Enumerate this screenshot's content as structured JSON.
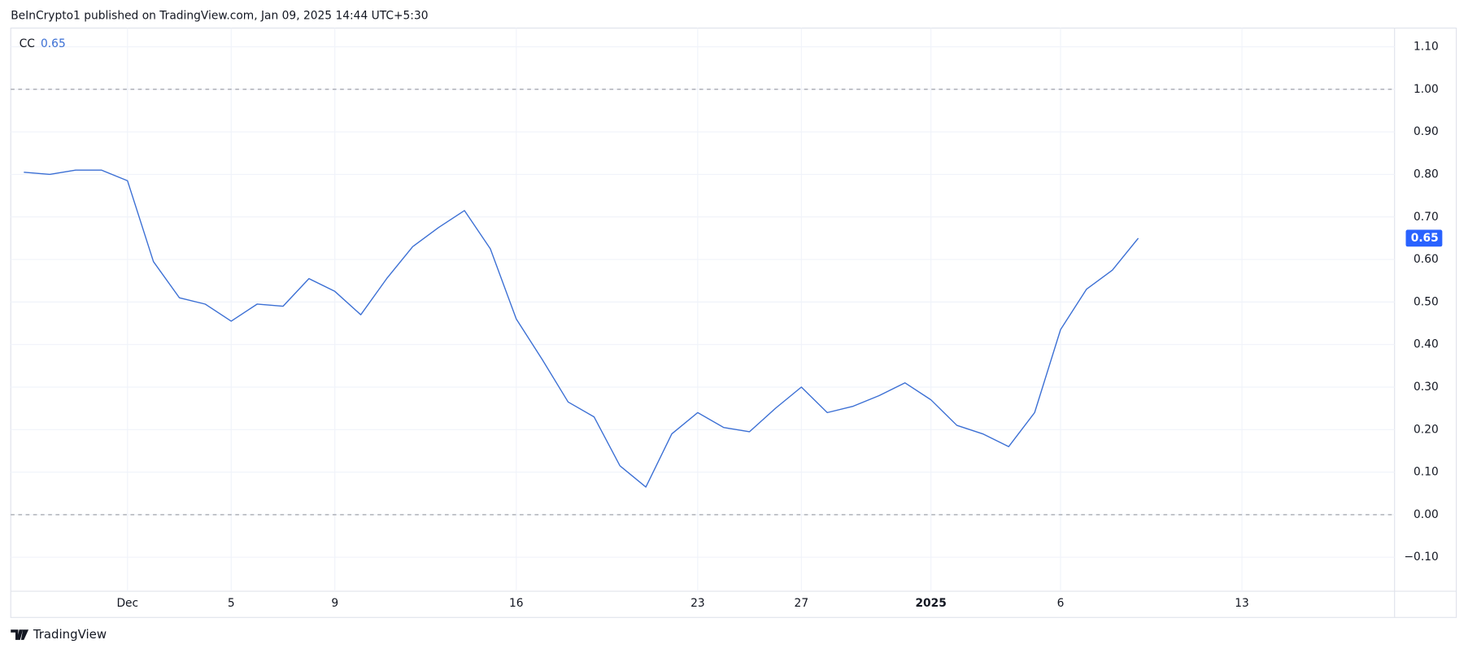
{
  "header": "BeInCrypto1 published on TradingView.com, Jan 09, 2025 14:44 UTC+5:30",
  "footer": "TradingView",
  "chart_data": {
    "type": "line",
    "categories": [
      null,
      null,
      null,
      null,
      "Dec",
      null,
      null,
      null,
      "5",
      null,
      null,
      null,
      "9",
      null,
      null,
      null,
      null,
      null,
      null,
      "16",
      null,
      null,
      null,
      null,
      null,
      null,
      "23",
      null,
      null,
      null,
      "27",
      null,
      null,
      null,
      null,
      "2025",
      null,
      null,
      null,
      null,
      "6",
      null,
      null,
      null,
      null,
      null,
      null,
      "13",
      null,
      null,
      null,
      null,
      null
    ],
    "series": [
      {
        "name": "CC",
        "color": "#3b6fd4",
        "last_label": "0.65",
        "values": [
          0.805,
          0.8,
          0.81,
          0.81,
          0.785,
          0.595,
          0.51,
          0.495,
          0.455,
          0.495,
          0.49,
          0.555,
          0.525,
          0.47,
          0.555,
          0.63,
          0.675,
          0.715,
          0.625,
          0.46,
          0.365,
          0.265,
          0.23,
          0.115,
          0.065,
          0.19,
          0.24,
          0.205,
          0.195,
          0.25,
          0.3,
          0.24,
          0.255,
          0.28,
          0.31,
          0.27,
          0.21,
          0.19,
          0.16,
          0.24,
          0.435,
          0.53,
          0.575,
          0.65,
          null,
          null,
          null,
          null,
          null,
          null,
          null,
          null,
          null
        ]
      }
    ],
    "ylim": [
      -0.18,
      1.144
    ],
    "yticks": [
      {
        "value": -0.1,
        "label": "−0.10"
      },
      {
        "value": 0,
        "label": "0.00"
      },
      {
        "value": 0.1,
        "label": "0.10"
      },
      {
        "value": 0.2,
        "label": "0.20"
      },
      {
        "value": 0.3,
        "label": "0.30"
      },
      {
        "value": 0.4,
        "label": "0.40"
      },
      {
        "value": 0.5,
        "label": "0.50"
      },
      {
        "value": 0.6,
        "label": "0.60"
      },
      {
        "value": 0.7,
        "label": "0.70"
      },
      {
        "value": 0.8,
        "label": "0.80"
      },
      {
        "value": 0.9,
        "label": "0.90"
      },
      {
        "value": 1,
        "label": "1.00"
      },
      {
        "value": 1.1,
        "label": "1.10"
      }
    ],
    "reference_lines": [
      0,
      1
    ],
    "badge_color": "#2962ff",
    "grid": true
  }
}
